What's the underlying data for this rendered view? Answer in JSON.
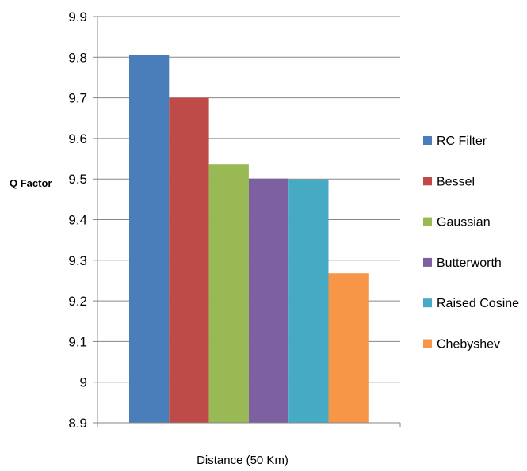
{
  "chart_data": {
    "type": "bar",
    "title": "",
    "xlabel": "Distance (50 Km)",
    "ylabel": "Q Factor",
    "ylim": [
      8.9,
      9.9
    ],
    "yticks": [
      8.9,
      9,
      9.1,
      9.2,
      9.3,
      9.4,
      9.5,
      9.6,
      9.7,
      9.8,
      9.9
    ],
    "ytick_labels": [
      "8.9",
      "9",
      "9.1",
      "9.2",
      "9.3",
      "9.4",
      "9.5",
      "9.6",
      "9.7",
      "9.8",
      "9.9"
    ],
    "grid": true,
    "legend_position": "right",
    "categories": [
      ""
    ],
    "series": [
      {
        "name": "RC Filter",
        "values": [
          9.805
        ],
        "color": "#4a7ebb"
      },
      {
        "name": "Bessel",
        "values": [
          9.7
        ],
        "color": "#be4b48"
      },
      {
        "name": "Gaussian",
        "values": [
          9.537
        ],
        "color": "#98b954"
      },
      {
        "name": "Butterworth",
        "values": [
          9.501
        ],
        "color": "#7d60a0"
      },
      {
        "name": "Raised Cosine",
        "values": [
          9.499
        ],
        "color": "#46aac5"
      },
      {
        "name": "Chebyshev",
        "values": [
          9.268
        ],
        "color": "#f79646"
      }
    ]
  }
}
